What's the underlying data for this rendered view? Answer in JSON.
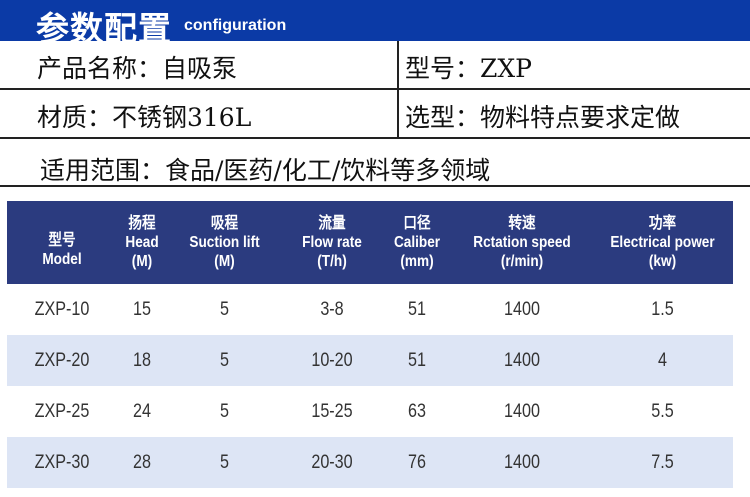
{
  "banner": {
    "title_zh": "参数配置",
    "title_en": "configuration"
  },
  "info": {
    "product_name": "产品名称：自吸泵",
    "model": "型号：ZXP",
    "material": "材质：不锈钢316L",
    "selection": "选型：物料特点要求定做",
    "application": "适用范围：食品/医药/化工/饮料等多领域"
  },
  "table": {
    "headers": [
      {
        "zh": "型号",
        "en": "Model",
        "unit": ""
      },
      {
        "zh": "扬程",
        "en": "Head",
        "unit": "(M)"
      },
      {
        "zh": "吸程",
        "en": "Suction lift",
        "unit": "(M)"
      },
      {
        "zh": "流量",
        "en": "Flow rate",
        "unit": "(T/h)"
      },
      {
        "zh": "口径",
        "en": "Caliber",
        "unit": "(mm)"
      },
      {
        "zh": "转速",
        "en": "Rctation speed",
        "unit": "(r/min)"
      },
      {
        "zh": "功率",
        "en": "Electrical power",
        "unit": "(kw)"
      }
    ],
    "rows": [
      [
        "ZXP-10",
        "15",
        "5",
        "3-8",
        "51",
        "1400",
        "1.5"
      ],
      [
        "ZXP-20",
        "18",
        "5",
        "10-20",
        "51",
        "1400",
        "4"
      ],
      [
        "ZXP-25",
        "24",
        "5",
        "15-25",
        "63",
        "1400",
        "5.5"
      ],
      [
        "ZXP-30",
        "28",
        "5",
        "20-30",
        "76",
        "1400",
        "7.5"
      ]
    ]
  },
  "colors": {
    "banner": "#0b3aa6",
    "table_header": "#2b3b7f",
    "row_alt": "#dde5f5"
  }
}
